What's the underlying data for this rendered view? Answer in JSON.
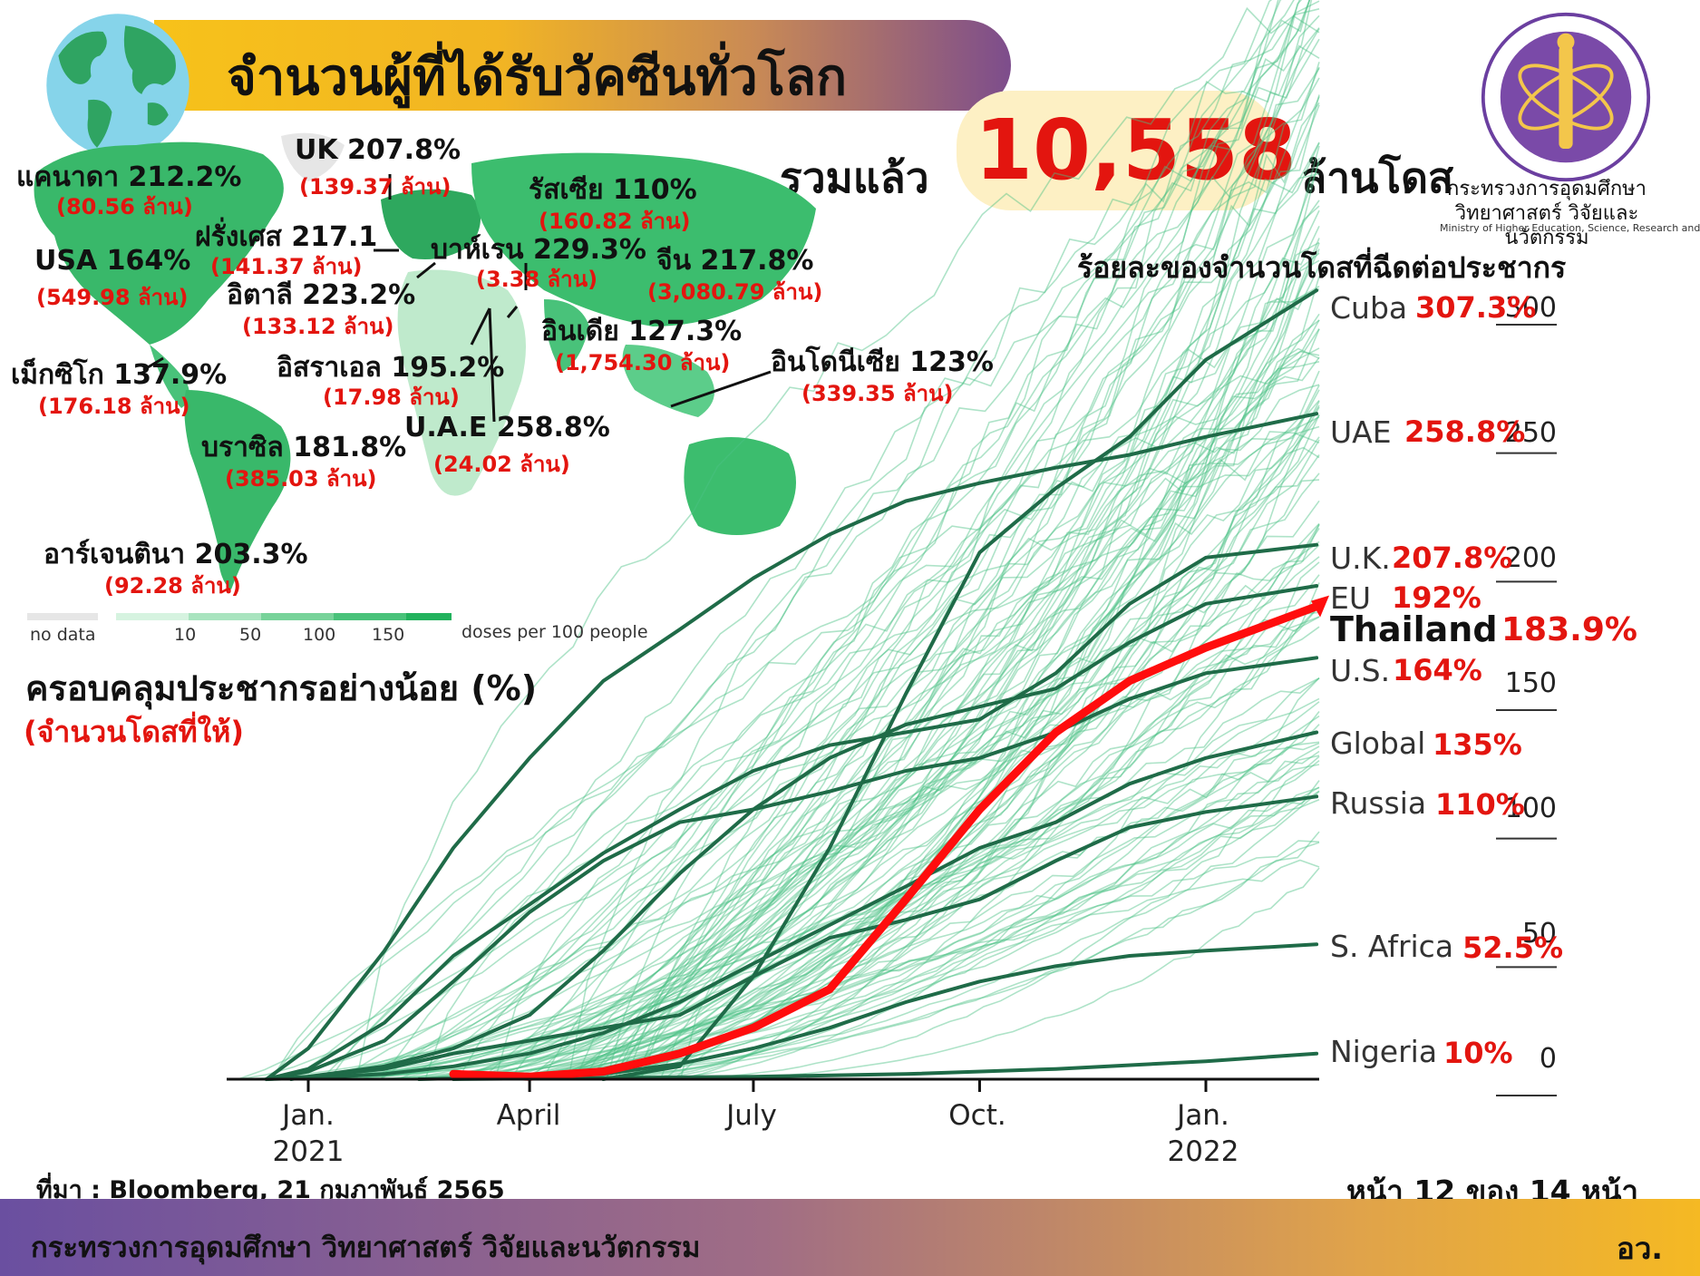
{
  "header": {
    "title": "จำนวนผู้ที่ได้รับวัคซีนทั่วโลก",
    "total_prefix": "รวมแล้ว",
    "total_value": "10,558",
    "total_suffix": "ล้านโดส"
  },
  "logo": {
    "ministry_th": "กระทรวงการอุดมศึกษา วิทยาศาสตร์ วิจัยและนวัตกรรม",
    "ministry_en": "Ministry of Higher Education, Science, Research and Innovation"
  },
  "map": {
    "countries": [
      {
        "name": "UK 207.8%",
        "sub": "(139.37 ล้าน)"
      },
      {
        "name": "แคนาดา 212.2%",
        "sub": "(80.56 ล้าน)"
      },
      {
        "name": "ฝรั่งเศส 217.1",
        "sub": "(141.37 ล้าน)"
      },
      {
        "name": "รัสเซีย 110%",
        "sub": "(160.82 ล้าน)"
      },
      {
        "name": "บาห์เรน 229.3%",
        "sub": "(3.38 ล้าน)"
      },
      {
        "name": "จีน 217.8%",
        "sub": "(3,080.79 ล้าน)"
      },
      {
        "name": "USA 164%",
        "sub": "(549.98 ล้าน)"
      },
      {
        "name": "อิตาลี 223.2%",
        "sub": "(133.12 ล้าน)"
      },
      {
        "name": "อินเดีย 127.3%",
        "sub": "(1,754.30 ล้าน)"
      },
      {
        "name": "อิสราเอล 195.2%",
        "sub": "(17.98 ล้าน)"
      },
      {
        "name": "อินโดนีเซีย 123%",
        "sub": "(339.35 ล้าน)"
      },
      {
        "name": "เม็กซิโก 137.9%",
        "sub": "(176.18 ล้าน)"
      },
      {
        "name": "บราซิล 181.8%",
        "sub": "(385.03 ล้าน)"
      },
      {
        "name": "U.A.E 258.8%",
        "sub": "(24.02 ล้าน)"
      },
      {
        "name": "อาร์เจนตินา 203.3%",
        "sub": "(92.28 ล้าน)"
      }
    ],
    "legend": {
      "no_data": "no data",
      "ticks": [
        "10",
        "50",
        "100",
        "150"
      ],
      "unit": "doses per 100 people",
      "colors": [
        "#e6e6e6",
        "#d6f3e0",
        "#a9e4bf",
        "#78d39a",
        "#49c27a",
        "#22b25d"
      ]
    },
    "coverage_title": "ครอบคลุมประชากรอย่างน้อย (%)",
    "coverage_sub": "(จำนวนโดสที่ให้)"
  },
  "chart_data": {
    "type": "line",
    "title": "ร้อยละของจำนวนโดสที่ฉีดต่อประชากร",
    "x_ticks": [
      {
        "label": "Jan.",
        "year": "2021",
        "date": "2021-01-01"
      },
      {
        "label": "April",
        "year": "",
        "date": "2021-04-01"
      },
      {
        "label": "July",
        "year": "",
        "date": "2021-07-01"
      },
      {
        "label": "Oct.",
        "year": "",
        "date": "2021-10-01"
      },
      {
        "label": "Jan.",
        "year": "2022",
        "date": "2022-01-01"
      }
    ],
    "y_ticks": [
      "300",
      "250",
      "200",
      "150",
      "100",
      "50",
      "0"
    ],
    "ylim": [
      0,
      310
    ],
    "series": [
      {
        "name": "Cuba",
        "pct": "307.3%",
        "points": [
          [
            "2021-05-01",
            0
          ],
          [
            "2021-06-01",
            5
          ],
          [
            "2021-07-01",
            40
          ],
          [
            "2021-08-01",
            90
          ],
          [
            "2021-09-01",
            150
          ],
          [
            "2021-10-01",
            205
          ],
          [
            "2021-11-01",
            230
          ],
          [
            "2021-12-01",
            250
          ],
          [
            "2022-01-01",
            280
          ],
          [
            "2022-02-15",
            307
          ]
        ]
      },
      {
        "name": "UAE",
        "pct": "258.8%",
        "points": [
          [
            "2020-12-15",
            0
          ],
          [
            "2021-01-01",
            12
          ],
          [
            "2021-02-01",
            50
          ],
          [
            "2021-03-01",
            90
          ],
          [
            "2021-04-01",
            125
          ],
          [
            "2021-05-01",
            155
          ],
          [
            "2021-06-01",
            175
          ],
          [
            "2021-07-01",
            195
          ],
          [
            "2021-08-01",
            212
          ],
          [
            "2021-09-01",
            225
          ],
          [
            "2021-10-01",
            232
          ],
          [
            "2021-11-01",
            238
          ],
          [
            "2021-12-01",
            243
          ],
          [
            "2022-01-01",
            250
          ],
          [
            "2022-02-15",
            259
          ]
        ]
      },
      {
        "name": "U.K.",
        "pct": "207.8%",
        "points": [
          [
            "2020-12-15",
            0
          ],
          [
            "2021-01-01",
            4
          ],
          [
            "2021-02-01",
            22
          ],
          [
            "2021-03-01",
            48
          ],
          [
            "2021-04-01",
            68
          ],
          [
            "2021-05-01",
            88
          ],
          [
            "2021-06-01",
            105
          ],
          [
            "2021-07-01",
            120
          ],
          [
            "2021-08-01",
            130
          ],
          [
            "2021-09-01",
            135
          ],
          [
            "2021-10-01",
            140
          ],
          [
            "2021-11-01",
            158
          ],
          [
            "2021-12-01",
            185
          ],
          [
            "2022-01-01",
            203
          ],
          [
            "2022-02-15",
            208
          ]
        ]
      },
      {
        "name": "EU",
        "pct": "192%",
        "points": [
          [
            "2020-12-25",
            0
          ],
          [
            "2021-01-01",
            1
          ],
          [
            "2021-02-01",
            5
          ],
          [
            "2021-03-01",
            12
          ],
          [
            "2021-04-01",
            25
          ],
          [
            "2021-05-01",
            50
          ],
          [
            "2021-06-01",
            80
          ],
          [
            "2021-07-01",
            105
          ],
          [
            "2021-08-01",
            125
          ],
          [
            "2021-09-01",
            138
          ],
          [
            "2021-10-01",
            145
          ],
          [
            "2021-11-01",
            152
          ],
          [
            "2021-12-01",
            170
          ],
          [
            "2022-01-01",
            185
          ],
          [
            "2022-02-15",
            192
          ]
        ]
      },
      {
        "name": "Thailand",
        "pct": "183.9%",
        "points": [
          [
            "2021-03-01",
            2
          ],
          [
            "2021-04-01",
            1
          ],
          [
            "2021-05-01",
            3
          ],
          [
            "2021-06-01",
            10
          ],
          [
            "2021-07-01",
            20
          ],
          [
            "2021-08-01",
            35
          ],
          [
            "2021-09-01",
            70
          ],
          [
            "2021-10-01",
            105
          ],
          [
            "2021-11-01",
            135
          ],
          [
            "2021-12-01",
            155
          ],
          [
            "2022-01-01",
            168
          ],
          [
            "2022-02-15",
            184
          ]
        ]
      },
      {
        "name": "U.S.",
        "pct": "164%",
        "points": [
          [
            "2020-12-15",
            0
          ],
          [
            "2021-01-01",
            3
          ],
          [
            "2021-02-01",
            15
          ],
          [
            "2021-03-01",
            38
          ],
          [
            "2021-04-01",
            65
          ],
          [
            "2021-05-01",
            85
          ],
          [
            "2021-06-01",
            100
          ],
          [
            "2021-07-01",
            105
          ],
          [
            "2021-08-01",
            112
          ],
          [
            "2021-09-01",
            120
          ],
          [
            "2021-10-01",
            125
          ],
          [
            "2021-11-01",
            135
          ],
          [
            "2021-12-01",
            148
          ],
          [
            "2022-01-01",
            158
          ],
          [
            "2022-02-15",
            164
          ]
        ]
      },
      {
        "name": "Global",
        "pct": "135%",
        "points": [
          [
            "2020-12-15",
            0
          ],
          [
            "2021-01-01",
            0.5
          ],
          [
            "2021-02-01",
            2
          ],
          [
            "2021-03-01",
            5
          ],
          [
            "2021-04-01",
            10
          ],
          [
            "2021-05-01",
            18
          ],
          [
            "2021-06-01",
            30
          ],
          [
            "2021-07-01",
            45
          ],
          [
            "2021-08-01",
            60
          ],
          [
            "2021-09-01",
            75
          ],
          [
            "2021-10-01",
            90
          ],
          [
            "2021-11-01",
            100
          ],
          [
            "2021-12-01",
            115
          ],
          [
            "2022-01-01",
            125
          ],
          [
            "2022-02-15",
            135
          ]
        ]
      },
      {
        "name": "Russia",
        "pct": "110%",
        "points": [
          [
            "2020-12-15",
            0
          ],
          [
            "2021-01-01",
            1
          ],
          [
            "2021-02-01",
            4
          ],
          [
            "2021-03-01",
            10
          ],
          [
            "2021-04-01",
            15
          ],
          [
            "2021-05-01",
            20
          ],
          [
            "2021-06-01",
            25
          ],
          [
            "2021-07-01",
            40
          ],
          [
            "2021-08-01",
            55
          ],
          [
            "2021-09-01",
            62
          ],
          [
            "2021-10-01",
            70
          ],
          [
            "2021-11-01",
            85
          ],
          [
            "2021-12-01",
            98
          ],
          [
            "2022-01-01",
            104
          ],
          [
            "2022-02-15",
            110
          ]
        ]
      },
      {
        "name": "S. Africa",
        "pct": "52.5%",
        "points": [
          [
            "2021-02-15",
            0
          ],
          [
            "2021-04-01",
            1
          ],
          [
            "2021-05-01",
            2
          ],
          [
            "2021-06-01",
            6
          ],
          [
            "2021-07-01",
            12
          ],
          [
            "2021-08-01",
            20
          ],
          [
            "2021-09-01",
            30
          ],
          [
            "2021-10-01",
            38
          ],
          [
            "2021-11-01",
            44
          ],
          [
            "2021-12-01",
            48
          ],
          [
            "2022-01-01",
            50
          ],
          [
            "2022-02-15",
            52.5
          ]
        ]
      },
      {
        "name": "Nigeria",
        "pct": "10%",
        "points": [
          [
            "2021-03-01",
            0
          ],
          [
            "2021-05-01",
            0.5
          ],
          [
            "2021-07-01",
            1
          ],
          [
            "2021-09-01",
            2
          ],
          [
            "2021-11-01",
            4
          ],
          [
            "2022-01-01",
            7
          ],
          [
            "2022-02-15",
            10
          ]
        ]
      }
    ]
  },
  "chart_colors": {
    "highlight": "#ff0d0d",
    "series": "#1f6b48",
    "background_lines": "#4cc186",
    "pct_text": "#e3150f"
  },
  "footer": {
    "source": "ที่มา : Bloomberg, 21 กุมภาพันธ์ 2565",
    "page": "หน้า 12 ของ 14 หน้า",
    "ministry": "กระทรวงการอุดมศึกษา วิทยาศาสตร์ วิจัยและนวัตกรรม",
    "abbr": "อว."
  }
}
